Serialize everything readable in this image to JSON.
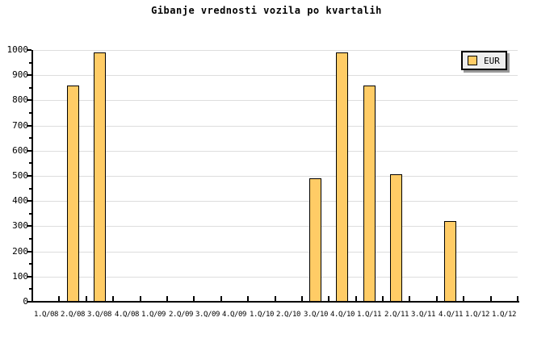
{
  "title": "Gibanje vrednosti vozila po kvartalih",
  "legend": {
    "label": "EUR"
  },
  "colors": {
    "bar_fill": "#FFCC66",
    "bar_border": "#000000",
    "grid": "#DDDDDD",
    "axis": "#000000",
    "legend_bg": "#EEEEEE",
    "legend_shadow": "#999999",
    "background": "#FFFFFF"
  },
  "chart_data": {
    "type": "bar",
    "title": "Gibanje vrednosti vozila po kvartalih",
    "categories": [
      "1.Q/08",
      "2.Q/08",
      "3.Q/08",
      "4.Q/08",
      "1.Q/09",
      "2.Q/09",
      "3.Q/09",
      "4.Q/09",
      "1.Q/10",
      "2.Q/10",
      "3.Q/10",
      "4.Q/10",
      "1.Q/11",
      "2.Q/11",
      "3.Q/11",
      "4.Q/11",
      "1.Q/12",
      "1.Q/12"
    ],
    "series": [
      {
        "name": "EUR",
        "values": [
          null,
          860,
          990,
          null,
          null,
          null,
          null,
          null,
          null,
          null,
          490,
          990,
          860,
          505,
          null,
          320,
          null,
          null
        ]
      }
    ],
    "ylim": [
      0,
      1000
    ],
    "ytick_interval": 100,
    "yminor_interval": 50,
    "ytick_labels": [
      "0",
      "100",
      "200",
      "300",
      "400",
      "500",
      "600",
      "700",
      "800",
      "900",
      "1000"
    ],
    "grid": "horizontal",
    "legend_position": "top-right"
  }
}
